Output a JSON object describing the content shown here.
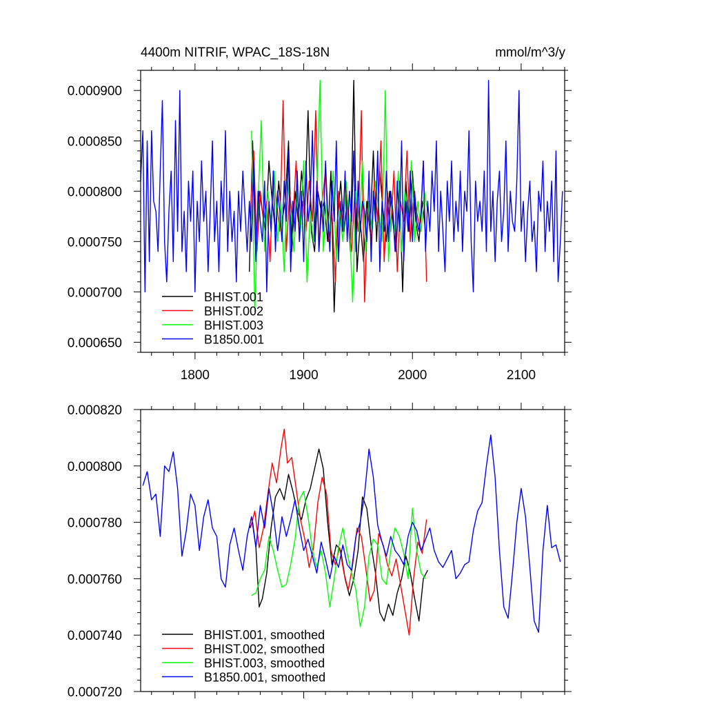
{
  "figure": {
    "title_left": "4400m NITRIF, WPAC_18S-18N",
    "title_right": "mmol/m^3/y"
  },
  "chart_data": [
    {
      "type": "line",
      "title": "4400m NITRIF, WPAC_18S-18N",
      "units": "mmol/m^3/y",
      "xlim": [
        1750,
        2140
      ],
      "ylim": [
        0.00064,
        0.00092
      ],
      "x_ticks": [
        1800,
        1900,
        2000,
        2100
      ],
      "x_tick_labels": [
        "1800",
        "1900",
        "2000",
        "2100"
      ],
      "y_ticks": [
        0.00065,
        0.0007,
        0.00075,
        0.0008,
        0.00085,
        0.0009
      ],
      "y_tick_labels": [
        "0.000650",
        "0.000700",
        "0.000750",
        "0.000800",
        "0.000850",
        "0.000900"
      ],
      "grid": false,
      "legend_position": "bottom-left",
      "series": [
        {
          "name": "BHIST.001",
          "color": "#000000",
          "x_start": 1850,
          "x_step": 3,
          "values": [
            0.00072,
            0.00085,
            0.00073,
            0.0008,
            0.00078,
            0.00076,
            0.00083,
            0.00079,
            0.00076,
            0.00081,
            0.00077,
            0.00079,
            0.00085,
            0.00074,
            0.0008,
            0.00077,
            0.00082,
            0.00078,
            0.00088,
            0.00076,
            0.00074,
            0.0008,
            0.00078,
            0.00079,
            0.00075,
            0.00082,
            0.00068,
            0.00077,
            0.00081,
            0.00076,
            0.00079,
            0.00074,
            0.00091,
            0.00072,
            0.00077,
            0.00073,
            0.00079,
            0.00076,
            0.00084,
            0.00075,
            0.00082,
            0.00078,
            0.00075,
            0.0008,
            0.00077,
            0.00074,
            0.00081,
            0.0007,
            0.00081,
            0.00076,
            0.00082,
            0.00077,
            0.00075,
            0.00079,
            0.00076
          ]
        },
        {
          "name": "BHIST.002",
          "color": "#ff0000",
          "x_start": 1851,
          "x_step": 3,
          "values": [
            0.00078,
            0.00084,
            0.00074,
            0.0008,
            0.00077,
            0.00079,
            0.00073,
            0.00082,
            0.00079,
            0.00076,
            0.00089,
            0.00074,
            0.0008,
            0.00077,
            0.00083,
            0.00075,
            0.00079,
            0.00076,
            0.00081,
            0.00077,
            0.00088,
            0.00074,
            0.00079,
            0.00082,
            0.00075,
            0.00078,
            0.00071,
            0.0008,
            0.00076,
            0.00081,
            0.00077,
            0.00074,
            0.0008,
            0.00076,
            0.00088,
            0.00069,
            0.00079,
            0.00075,
            0.00081,
            0.00077,
            0.00085,
            0.00073,
            0.0008,
            0.00076,
            0.00082,
            0.00072,
            0.00079,
            0.00077,
            0.00084,
            0.00075,
            0.0008,
            0.00078,
            0.00076,
            0.00083,
            0.00071
          ]
        },
        {
          "name": "BHIST.003",
          "color": "#00ff00",
          "x_start": 1852,
          "x_step": 3,
          "values": [
            0.00086,
            0.00068,
            0.00079,
            0.00087,
            0.00074,
            0.0008,
            0.00077,
            0.00082,
            0.00075,
            0.00079,
            0.00072,
            0.00081,
            0.00078,
            0.00074,
            0.0008,
            0.00076,
            0.00083,
            0.00071,
            0.00078,
            0.00075,
            0.0008,
            0.00091,
            0.00074,
            0.00079,
            0.00076,
            0.00082,
            0.00073,
            0.00078,
            0.00075,
            0.00081,
            0.00077,
            0.00069,
            0.0008,
            0.00076,
            0.00083,
            0.00074,
            0.00079,
            0.00076,
            0.00081,
            0.00078,
            0.00075,
            0.0009,
            0.00073,
            0.00079,
            0.00076,
            0.00082,
            0.00074,
            0.0008,
            0.00077,
            0.00083,
            0.00075,
            0.00079,
            0.00076,
            0.0008,
            0.00078
          ]
        },
        {
          "name": "B1850.001",
          "color": "#0000ff",
          "x_start": 1750,
          "x_step": 2,
          "values": [
            0.00081,
            0.00086,
            0.0007,
            0.00085,
            0.00073,
            0.00086,
            0.00079,
            0.00078,
            0.00074,
            0.00082,
            0.00089,
            0.00075,
            0.00071,
            0.00078,
            0.00082,
            0.00073,
            0.00087,
            0.00076,
            0.0009,
            0.00074,
            0.00078,
            0.00072,
            0.00081,
            0.00077,
            0.00082,
            0.0007,
            0.00079,
            0.00075,
            0.00083,
            0.00077,
            0.0008,
            0.00072,
            0.00078,
            0.00085,
            0.00075,
            0.00079,
            0.00072,
            0.00081,
            0.00077,
            0.00086,
            0.00074,
            0.0008,
            0.00075,
            0.00078,
            0.00071,
            0.0008,
            0.00076,
            0.00082,
            0.00078,
            0.00074,
            0.00079,
            0.00075,
            0.00083,
            0.00073,
            0.0008,
            0.00077,
            0.00075,
            0.00081,
            0.0007,
            0.00079,
            0.00076,
            0.00082,
            0.00074,
            0.0008,
            0.00078,
            0.00075,
            0.00081,
            0.00077,
            0.00084,
            0.00072,
            0.00079,
            0.00076,
            0.00082,
            0.00075,
            0.0008,
            0.00073,
            0.00083,
            0.00077,
            0.00079,
            0.00086,
            0.00075,
            0.00081,
            0.00074,
            0.00079,
            0.00076,
            0.00083,
            0.00078,
            0.00074,
            0.00081,
            0.00077,
            0.00085,
            0.00073,
            0.00079,
            0.00076,
            0.00082,
            0.00075,
            0.0008,
            0.00077,
            0.00084,
            0.00074,
            0.00081,
            0.00076,
            0.00079,
            0.00078,
            0.00075,
            0.00082,
            0.00073,
            0.0008,
            0.00077,
            0.00084,
            0.00072,
            0.00079,
            0.00076,
            0.00082,
            0.00075,
            0.0008,
            0.00078,
            0.00074,
            0.00081,
            0.00076,
            0.00085,
            0.00073,
            0.00079,
            0.00076,
            0.00082,
            0.00075,
            0.0008,
            0.00077,
            0.00076,
            0.00078,
            0.00083,
            0.00074,
            0.00079,
            0.00076,
            0.00082,
            0.00078,
            0.00085,
            0.00074,
            0.0008,
            0.00076,
            0.00072,
            0.00081,
            0.00077,
            0.00083,
            0.00075,
            0.00079,
            0.00076,
            0.00082,
            0.00074,
            0.0008,
            0.00078,
            0.00086,
            0.00075,
            0.0007,
            0.00081,
            0.00077,
            0.00079,
            0.00076,
            0.00082,
            0.00074,
            0.00091,
            0.00076,
            0.0008,
            0.00073,
            0.00079,
            0.00082,
            0.00075,
            0.00078,
            0.00085,
            0.00074,
            0.0008,
            0.00077,
            0.00076,
            0.00081,
            0.0009,
            0.00076,
            0.00079,
            0.00073,
            0.00078,
            0.00081,
            0.00075,
            0.00077,
            0.00072,
            0.0008,
            0.00078,
            0.00083,
            0.00074,
            0.00079,
            0.00076,
            0.00081,
            0.00073,
            0.00084,
            0.00071,
            0.00075,
            0.0008
          ]
        }
      ]
    },
    {
      "type": "line",
      "title": "",
      "xlim": [
        1750,
        2140
      ],
      "ylim": [
        0.00072,
        0.00082
      ],
      "x_ticks": [
        1800,
        1900,
        2000,
        2100
      ],
      "x_tick_labels": [],
      "y_ticks": [
        0.00072,
        0.00074,
        0.00076,
        0.00078,
        0.0008,
        0.00082
      ],
      "y_tick_labels": [
        "0.000720",
        "0.000740",
        "0.000760",
        "0.000780",
        "0.000800",
        "0.000820"
      ],
      "grid": false,
      "legend_position": "bottom-left",
      "series": [
        {
          "name": "BHIST.001, smoothed",
          "color": "#000000",
          "x": [
            1850,
            1853,
            1856,
            1859,
            1862,
            1866,
            1870,
            1874,
            1878,
            1882,
            1886,
            1890,
            1894,
            1898,
            1902,
            1906,
            1910,
            1914,
            1918,
            1922,
            1926,
            1930,
            1934,
            1938,
            1942,
            1946,
            1950,
            1954,
            1958,
            1962,
            1966,
            1970,
            1974,
            1978,
            1982,
            1986,
            1990,
            1994,
            1998,
            2002,
            2006,
            2010,
            2014
          ],
          "values": [
            0.000778,
            0.00078,
            0.000771,
            0.00075,
            0.000753,
            0.000762,
            0.000778,
            0.000789,
            0.000792,
            0.000788,
            0.000797,
            0.000791,
            0.000784,
            0.000781,
            0.000788,
            0.000792,
            0.000799,
            0.000806,
            0.000799,
            0.00078,
            0.000765,
            0.000772,
            0.00077,
            0.00076,
            0.000754,
            0.00076,
            0.00077,
            0.000789,
            0.000785,
            0.000772,
            0.000762,
            0.000748,
            0.000745,
            0.000751,
            0.000747,
            0.000755,
            0.00076,
            0.000768,
            0.000762,
            0.000753,
            0.000745,
            0.00076,
            0.000763
          ]
        },
        {
          "name": "BHIST.002, smoothed",
          "color": "#ff0000",
          "x": [
            1851,
            1855,
            1859,
            1863,
            1867,
            1871,
            1875,
            1879,
            1882,
            1885,
            1889,
            1893,
            1897,
            1901,
            1905,
            1909,
            1913,
            1917,
            1921,
            1925,
            1929,
            1933,
            1937,
            1941,
            1945,
            1949,
            1953,
            1957,
            1961,
            1965,
            1969,
            1973,
            1977,
            1981,
            1985,
            1989,
            1993,
            1997,
            2001,
            2005,
            2009,
            2013
          ],
          "values": [
            0.000778,
            0.000784,
            0.000771,
            0.000778,
            0.00079,
            0.000801,
            0.000794,
            0.000806,
            0.000813,
            0.000801,
            0.000803,
            0.000792,
            0.000781,
            0.000774,
            0.000764,
            0.000771,
            0.000787,
            0.000796,
            0.00079,
            0.00077,
            0.000765,
            0.000771,
            0.000762,
            0.000756,
            0.000765,
            0.000778,
            0.000775,
            0.000764,
            0.000752,
            0.000756,
            0.000776,
            0.000772,
            0.000765,
            0.000761,
            0.000767,
            0.000758,
            0.000749,
            0.00074,
            0.00076,
            0.000773,
            0.000769,
            0.000781
          ]
        },
        {
          "name": "BHIST.003, smoothed",
          "color": "#00ff00",
          "x": [
            1852,
            1856,
            1860,
            1864,
            1868,
            1872,
            1876,
            1880,
            1884,
            1888,
            1892,
            1896,
            1900,
            1904,
            1908,
            1912,
            1916,
            1920,
            1924,
            1928,
            1932,
            1936,
            1940,
            1944,
            1948,
            1952,
            1956,
            1960,
            1964,
            1968,
            1972,
            1976,
            1980,
            1984,
            1988,
            1992,
            1996,
            2000,
            2004,
            2008,
            2012
          ],
          "values": [
            0.000754,
            0.000755,
            0.00076,
            0.000763,
            0.000775,
            0.00077,
            0.000763,
            0.000757,
            0.000758,
            0.000765,
            0.000774,
            0.000788,
            0.000791,
            0.000782,
            0.00077,
            0.000764,
            0.00077,
            0.000762,
            0.00075,
            0.00076,
            0.000771,
            0.000778,
            0.000769,
            0.000762,
            0.000756,
            0.000743,
            0.00075,
            0.000768,
            0.000774,
            0.000772,
            0.00076,
            0.000758,
            0.00077,
            0.000778,
            0.000775,
            0.000769,
            0.00076,
            0.000785,
            0.00077,
            0.000762,
            0.00076
          ]
        },
        {
          "name": "B1850.001, smoothed",
          "color": "#0000ff",
          "x": [
            1752,
            1756,
            1760,
            1764,
            1768,
            1772,
            1776,
            1780,
            1784,
            1788,
            1792,
            1796,
            1800,
            1804,
            1808,
            1812,
            1816,
            1820,
            1824,
            1828,
            1832,
            1836,
            1840,
            1844,
            1848,
            1852,
            1856,
            1860,
            1864,
            1868,
            1872,
            1876,
            1880,
            1884,
            1888,
            1892,
            1896,
            1900,
            1904,
            1908,
            1912,
            1916,
            1920,
            1924,
            1928,
            1932,
            1936,
            1940,
            1944,
            1948,
            1952,
            1956,
            1960,
            1964,
            1968,
            1972,
            1976,
            1980,
            1984,
            1988,
            1992,
            1996,
            2000,
            2004,
            2008,
            2012,
            2016,
            2020,
            2024,
            2028,
            2032,
            2036,
            2040,
            2044,
            2048,
            2052,
            2056,
            2060,
            2064,
            2068,
            2072,
            2076,
            2080,
            2084,
            2088,
            2092,
            2096,
            2100,
            2104,
            2108,
            2112,
            2116,
            2120,
            2124,
            2128,
            2132,
            2136
          ],
          "values": [
            0.000793,
            0.000798,
            0.000788,
            0.00079,
            0.000775,
            0.0008,
            0.000798,
            0.000805,
            0.000792,
            0.000768,
            0.000777,
            0.00079,
            0.000786,
            0.00077,
            0.000782,
            0.000788,
            0.000778,
            0.000775,
            0.00076,
            0.000757,
            0.000772,
            0.000778,
            0.00077,
            0.000763,
            0.000775,
            0.000782,
            0.000771,
            0.000786,
            0.000778,
            0.000792,
            0.000783,
            0.00077,
            0.000782,
            0.000775,
            0.000781,
            0.000788,
            0.000778,
            0.00077,
            0.000774,
            0.000768,
            0.000762,
            0.000773,
            0.000767,
            0.00076,
            0.000768,
            0.000764,
            0.000772,
            0.000765,
            0.000763,
            0.000775,
            0.00078,
            0.00079,
            0.000806,
            0.000796,
            0.000779,
            0.000773,
            0.000768,
            0.000775,
            0.00077,
            0.000768,
            0.000765,
            0.000775,
            0.00078,
            0.000777,
            0.00077,
            0.000774,
            0.000778,
            0.00077,
            0.000766,
            0.000764,
            0.000767,
            0.00077,
            0.00076,
            0.000762,
            0.000765,
            0.000766,
            0.000777,
            0.000784,
            0.000787,
            0.0008,
            0.000811,
            0.000796,
            0.00077,
            0.00075,
            0.000746,
            0.000762,
            0.00078,
            0.000792,
            0.000782,
            0.000764,
            0.000745,
            0.000741,
            0.00077,
            0.000786,
            0.000771,
            0.000772,
            0.000766
          ]
        }
      ]
    }
  ]
}
